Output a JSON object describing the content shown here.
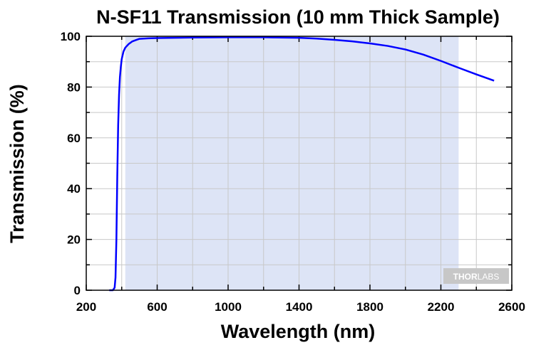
{
  "chart_data": {
    "type": "line",
    "title": "N-SF11 Transmission (10 mm Thick Sample)",
    "xlabel": "Wavelength (nm)",
    "ylabel": "Transmission (%)",
    "xlim": [
      200,
      2600
    ],
    "ylim": [
      0,
      100
    ],
    "x_ticks": [
      200,
      600,
      1000,
      1400,
      1800,
      2200,
      2600
    ],
    "y_ticks": [
      0,
      20,
      40,
      60,
      80,
      100
    ],
    "x_minor_step": 200,
    "y_minor_step": 10,
    "grid": true,
    "highlight_band": {
      "from": 420,
      "to": 2300,
      "color": "#dde4f6"
    },
    "colors": {
      "line": "#0000ff",
      "grid": "#c8c8c8"
    },
    "series": [
      {
        "x": [
          330,
          350,
          360,
          365,
          370,
          375,
          380,
          385,
          390,
          395,
          400,
          410,
          420,
          440,
          460,
          480,
          500,
          550,
          600,
          700,
          800,
          1000,
          1200,
          1400,
          1500,
          1600,
          1700,
          1800,
          1900,
          2000,
          2100,
          2200,
          2300,
          2400,
          2500
        ],
        "y": [
          0,
          0,
          1,
          5,
          20,
          45,
          65,
          77,
          84,
          88,
          91,
          94,
          95.5,
          97,
          98,
          98.5,
          99,
          99.2,
          99.3,
          99.4,
          99.5,
          99.6,
          99.6,
          99.4,
          99.1,
          98.6,
          98,
          97.2,
          96.2,
          94.8,
          92.8,
          90.3,
          87.6,
          85,
          82.5
        ]
      }
    ]
  },
  "logo": {
    "part1": "THOR",
    "part2": "LABS"
  }
}
